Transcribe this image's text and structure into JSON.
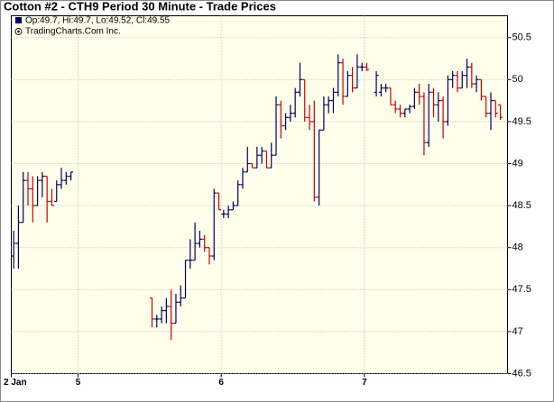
{
  "chart_data": {
    "type": "ohlc",
    "title": "Cotton #2 - CTH9 Period 30 Minute - Trade Prices",
    "info": "Op:49.7, Hi:49.7, Lo:49.52, Cl:49.55",
    "credit": "TradingCharts.Com Inc.",
    "up_color": "#00005e",
    "down_color": "#cc0000",
    "grid": true,
    "ylim": [
      46.5,
      50.76
    ],
    "yticks": [
      46.5,
      47,
      47.5,
      48,
      48.5,
      49,
      49.5,
      50,
      50.5
    ],
    "categories": [
      "2 Jan",
      null,
      null,
      null,
      null,
      null,
      null,
      null,
      null,
      null,
      null,
      null,
      null,
      null,
      "5",
      null,
      null,
      null,
      null,
      null,
      null,
      null,
      null,
      null,
      null,
      null,
      null,
      null,
      null,
      null,
      null,
      null,
      null,
      null,
      null,
      null,
      null,
      null,
      null,
      null,
      null,
      null,
      null,
      null,
      "6",
      null,
      null,
      null,
      null,
      null,
      null,
      null,
      null,
      null,
      null,
      null,
      null,
      null,
      null,
      null,
      null,
      null,
      null,
      null,
      null,
      null,
      null,
      null,
      null,
      null,
      null,
      null,
      null,
      null,
      "7",
      null,
      null,
      null,
      null,
      null,
      null,
      null,
      null,
      null,
      null,
      null,
      null,
      null,
      null,
      null,
      null,
      null,
      null,
      null,
      null,
      null,
      null,
      null,
      null,
      null,
      null,
      null,
      null,
      null
    ],
    "open": [
      47.9,
      48.05,
      48.3,
      48.8,
      48.7,
      48.5,
      48.8,
      48.85,
      48.55,
      48.55,
      48.75,
      48.8,
      48.85,
      null,
      null,
      null,
      null,
      null,
      null,
      null,
      null,
      null,
      null,
      null,
      null,
      null,
      null,
      null,
      null,
      47.4,
      47.15,
      47.15,
      47.25,
      47.3,
      47.1,
      47.35,
      47.4,
      47.85,
      47.85,
      48.05,
      48.1,
      48.0,
      47.9,
      48.65,
      48.4,
      48.4,
      48.45,
      48.5,
      48.75,
      48.9,
      49.0,
      48.95,
      49.1,
      49.15,
      48.95,
      49.1,
      49.7,
      49.45,
      49.55,
      49.6,
      49.85,
      50.0,
      49.55,
      49.5,
      48.6,
      49.4,
      49.7,
      49.75,
      49.85,
      50.2,
      49.8,
      50.05,
      49.9,
      50.15,
      50.15,
      null,
      49.85,
      49.85,
      49.9,
      49.9,
      49.7,
      49.65,
      49.6,
      49.65,
      49.68,
      49.85,
      49.8,
      49.25,
      49.85,
      49.7,
      49.75,
      49.5,
      50.0,
      50.05,
      49.9,
      50.05,
      50.15,
      49.95,
      50.0,
      49.8,
      49.6,
      49.75,
      49.7,
      null
    ],
    "high": [
      48.2,
      48.5,
      48.9,
      48.9,
      48.85,
      48.85,
      48.9,
      48.85,
      48.7,
      48.8,
      48.95,
      48.9,
      48.9,
      null,
      null,
      null,
      null,
      null,
      null,
      null,
      null,
      null,
      null,
      null,
      null,
      null,
      null,
      null,
      null,
      47.4,
      47.2,
      47.3,
      47.4,
      47.5,
      47.45,
      47.55,
      47.85,
      48.1,
      48.3,
      48.2,
      48.15,
      48.0,
      48.7,
      48.65,
      48.45,
      48.5,
      48.55,
      48.8,
      48.95,
      49.2,
      49.0,
      49.2,
      49.2,
      49.15,
      49.25,
      49.8,
      49.75,
      49.6,
      49.7,
      49.9,
      50.2,
      50.0,
      49.7,
      49.75,
      49.4,
      49.8,
      49.8,
      49.9,
      50.3,
      50.25,
      50.1,
      50.15,
      50.3,
      50.2,
      50.2,
      null,
      50.1,
      49.95,
      49.95,
      49.9,
      49.75,
      49.7,
      49.65,
      49.7,
      49.9,
      49.95,
      49.85,
      49.95,
      49.9,
      49.85,
      49.8,
      50.05,
      50.1,
      50.1,
      50.1,
      50.25,
      50.2,
      50.05,
      50.0,
      49.8,
      49.85,
      49.75,
      49.7,
      null
    ],
    "low": [
      47.75,
      47.75,
      48.3,
      48.5,
      48.3,
      48.5,
      48.6,
      48.3,
      48.5,
      48.55,
      48.7,
      48.75,
      48.8,
      null,
      null,
      null,
      null,
      null,
      null,
      null,
      null,
      null,
      null,
      null,
      null,
      null,
      null,
      null,
      null,
      47.05,
      47.05,
      47.1,
      47.1,
      46.9,
      47.1,
      47.3,
      47.4,
      47.75,
      47.85,
      48.0,
      47.95,
      47.8,
      47.85,
      48.45,
      48.35,
      48.35,
      48.45,
      48.5,
      48.7,
      48.9,
      48.95,
      48.95,
      49.0,
      48.95,
      48.95,
      49.1,
      49.3,
      49.4,
      49.5,
      49.55,
      49.8,
      49.5,
      49.4,
      48.55,
      48.5,
      49.4,
      49.6,
      49.6,
      49.8,
      49.7,
      49.8,
      49.85,
      49.9,
      50.1,
      50.1,
      null,
      49.8,
      49.8,
      49.85,
      49.7,
      49.6,
      49.55,
      49.55,
      49.6,
      49.65,
      49.7,
      49.1,
      49.2,
      49.55,
      49.5,
      49.3,
      49.45,
      49.9,
      49.85,
      49.9,
      49.9,
      49.9,
      49.85,
      49.75,
      49.55,
      49.4,
      49.55,
      49.52,
      null
    ],
    "close": [
      48.05,
      48.3,
      48.8,
      48.7,
      48.5,
      48.8,
      48.85,
      48.55,
      48.5,
      48.75,
      48.8,
      48.85,
      48.9,
      null,
      null,
      null,
      null,
      null,
      null,
      null,
      null,
      null,
      null,
      null,
      null,
      null,
      null,
      null,
      null,
      47.15,
      47.15,
      47.25,
      47.3,
      47.1,
      47.35,
      47.4,
      47.85,
      47.85,
      48.05,
      48.1,
      48.0,
      47.9,
      48.65,
      48.45,
      48.4,
      48.45,
      48.5,
      48.75,
      48.9,
      49.0,
      48.95,
      49.1,
      49.15,
      48.95,
      49.1,
      49.7,
      49.45,
      49.55,
      49.6,
      49.85,
      50.0,
      49.55,
      49.5,
      48.6,
      49.4,
      49.7,
      49.75,
      49.85,
      50.2,
      49.8,
      50.05,
      49.9,
      50.15,
      50.15,
      50.12,
      null,
      50.05,
      49.9,
      49.9,
      49.7,
      49.65,
      49.6,
      49.65,
      49.68,
      49.85,
      49.8,
      49.25,
      49.85,
      49.7,
      49.75,
      49.5,
      50.0,
      50.05,
      49.9,
      50.05,
      50.15,
      49.95,
      50.0,
      49.8,
      49.6,
      49.75,
      49.6,
      49.55,
      null
    ]
  }
}
